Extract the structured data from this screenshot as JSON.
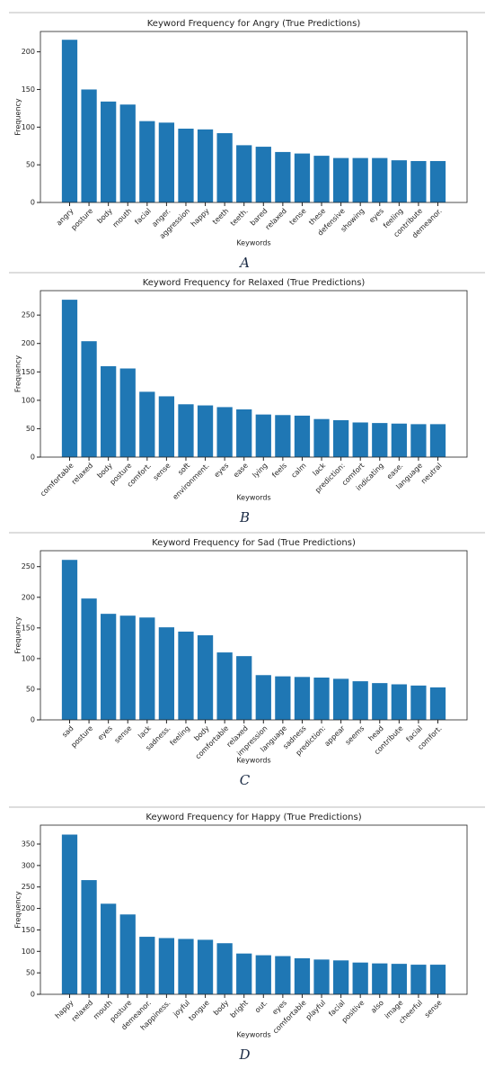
{
  "chart_data": [
    {
      "type": "bar",
      "title": "Keyword Frequency for Angry (True Predictions)",
      "x_label": "Keywords",
      "y_label": "Frequency",
      "caption": "A",
      "color": "#1f77b4",
      "categories": [
        "angry",
        "posture",
        "body",
        "mouth",
        "facial",
        "anger.",
        "aggression",
        "happy",
        "teeth",
        "teeth.",
        "bared",
        "relaxed",
        "tense",
        "these",
        "defensive",
        "showing",
        "eyes",
        "feeling",
        "contribute",
        "demeanor."
      ],
      "values": [
        216,
        150,
        134,
        130,
        108,
        106,
        98,
        97,
        92,
        76,
        74,
        67,
        65,
        62,
        59,
        59,
        59,
        56,
        55,
        55
      ],
      "ylim": [
        0,
        227
      ],
      "yticks": [
        0,
        50,
        100,
        150,
        200
      ]
    },
    {
      "type": "bar",
      "title": "Keyword Frequency for Relaxed (True Predictions)",
      "x_label": "Keywords",
      "y_label": "Frequency",
      "caption": "B",
      "color": "#1f77b4",
      "categories": [
        "comfortable",
        "relaxed",
        "body",
        "posture",
        "comfort.",
        "sense",
        "soft",
        "environment.",
        "eyes",
        "ease",
        "lying",
        "feels",
        "calm",
        "lack",
        "prediction:",
        "comfort",
        "indicating",
        "ease.",
        "language",
        "neutral"
      ],
      "values": [
        277,
        204,
        160,
        156,
        115,
        107,
        93,
        91,
        88,
        84,
        75,
        74,
        73,
        67,
        65,
        61,
        60,
        59,
        58,
        58
      ],
      "ylim": [
        0,
        293
      ],
      "yticks": [
        0,
        50,
        100,
        150,
        200,
        250
      ]
    },
    {
      "type": "bar",
      "title": "Keyword Frequency for Sad (True Predictions)",
      "x_label": "Keywords",
      "y_label": "Frequency",
      "caption": "C",
      "color": "#1f77b4",
      "categories": [
        "sad",
        "posture",
        "eyes",
        "sense",
        "lack",
        "sadness.",
        "feeling",
        "body",
        "comfortable",
        "relaxed",
        "impression",
        "language",
        "sadness",
        "prediction:",
        "appear",
        "seems",
        "head",
        "contribute",
        "facial",
        "comfort."
      ],
      "values": [
        261,
        198,
        173,
        170,
        167,
        151,
        144,
        138,
        110,
        104,
        73,
        71,
        70,
        69,
        67,
        63,
        60,
        58,
        56,
        53
      ],
      "ylim": [
        0,
        276
      ],
      "yticks": [
        0,
        50,
        100,
        150,
        200,
        250
      ]
    },
    {
      "type": "bar",
      "title": "Keyword Frequency for Happy (True Predictions)",
      "x_label": "Keywords",
      "y_label": "Frequency",
      "caption": "D",
      "color": "#1f77b4",
      "categories": [
        "happy",
        "relaxed",
        "mouth",
        "posture",
        "demeanor.",
        "happiness.",
        "joyful",
        "tongue",
        "body",
        "bright",
        "out.",
        "eyes",
        "comfortable",
        "playful",
        "facial",
        "positive",
        "also",
        "image",
        "cheerful",
        "sense"
      ],
      "values": [
        372,
        266,
        211,
        186,
        134,
        131,
        129,
        127,
        119,
        95,
        91,
        89,
        84,
        81,
        79,
        74,
        72,
        71,
        69,
        69
      ],
      "ylim": [
        0,
        394
      ],
      "yticks": [
        0,
        50,
        100,
        150,
        200,
        250,
        300,
        350
      ]
    }
  ]
}
